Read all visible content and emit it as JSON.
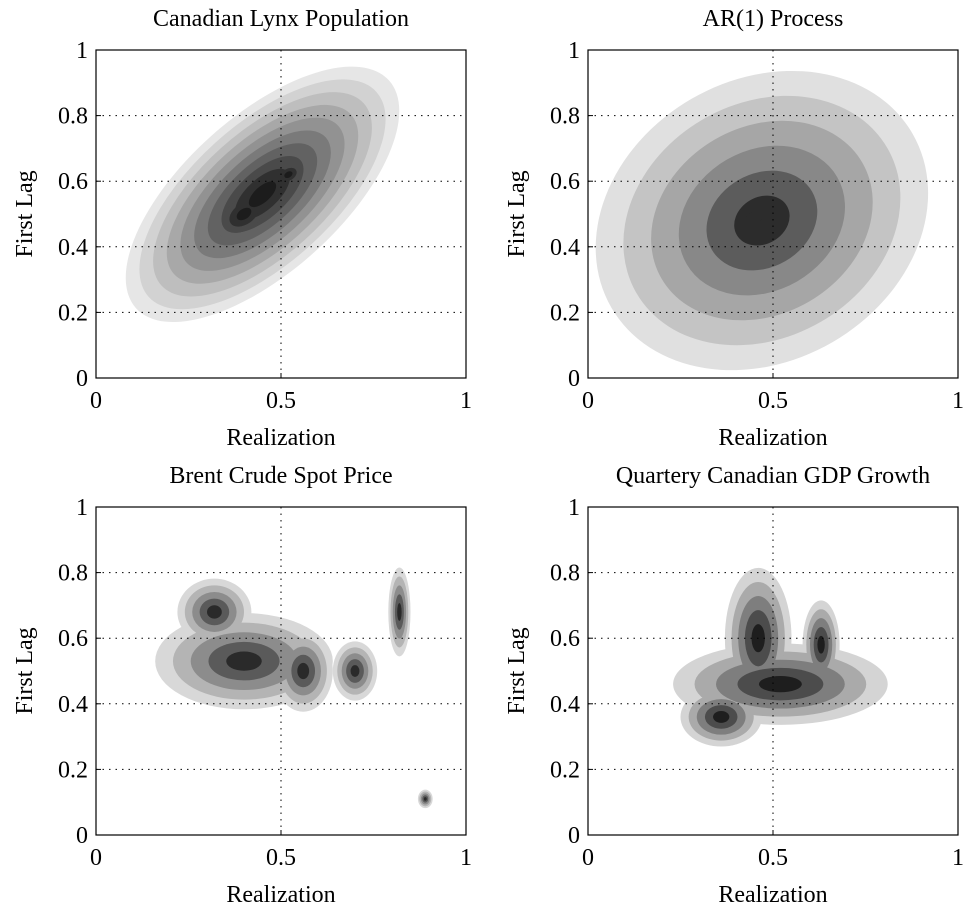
{
  "chart_data": [
    {
      "type": "contour",
      "title": "Canadian Lynx Population",
      "xlabel": "Realization",
      "ylabel": "First Lag",
      "xlim": [
        0,
        1
      ],
      "ylim": [
        0,
        1
      ],
      "xticks": [
        0,
        0.5,
        1
      ],
      "yticks": [
        0,
        0.2,
        0.4,
        0.6,
        0.8,
        1
      ],
      "grid": true,
      "levels": [
        "#e6e6e6",
        "#d2d2d2",
        "#bebebe",
        "#a8a8a8",
        "#929292",
        "#7a7a7a",
        "#626262",
        "#4a4a4a",
        "#303030",
        "#1c1c1c"
      ],
      "components": [
        {
          "x": 0.45,
          "y": 0.56,
          "rx": 0.46,
          "ry": 0.21,
          "angle": 42
        },
        {
          "x": 0.4,
          "y": 0.5,
          "rx": 0.22,
          "ry": 0.14,
          "angle": 35
        },
        {
          "x": 0.52,
          "y": 0.62,
          "rx": 0.12,
          "ry": 0.08,
          "angle": 30
        }
      ]
    },
    {
      "type": "contour",
      "title": "AR(1) Process",
      "xlabel": "Realization",
      "ylabel": "First Lag",
      "xlim": [
        0,
        1
      ],
      "ylim": [
        0,
        1
      ],
      "xticks": [
        0,
        0.5,
        1
      ],
      "yticks": [
        0,
        0.2,
        0.4,
        0.6,
        0.8,
        1
      ],
      "grid": true,
      "levels": [
        "#e0e0e0",
        "#c4c4c4",
        "#a6a6a6",
        "#888888",
        "#5c5c5c",
        "#2c2c2c"
      ],
      "components": [
        {
          "x": 0.47,
          "y": 0.48,
          "rx": 0.47,
          "ry": 0.38,
          "angle": 30
        },
        {
          "x": 0.45,
          "y": 0.49,
          "rx": 0.15,
          "ry": 0.09,
          "angle": 20
        }
      ]
    },
    {
      "type": "contour",
      "title": "Brent Crude Spot Price",
      "xlabel": "Realization",
      "ylabel": "First Lag",
      "xlim": [
        0,
        1
      ],
      "ylim": [
        0,
        1
      ],
      "xticks": [
        0,
        0.5,
        1
      ],
      "yticks": [
        0,
        0.2,
        0.4,
        0.6,
        0.8,
        1
      ],
      "grid": true,
      "levels": [
        "#d8d8d8",
        "#b4b4b4",
        "#8c8c8c",
        "#5a5a5a",
        "#2a2a2a"
      ],
      "components": [
        {
          "x": 0.4,
          "y": 0.53,
          "rx": 0.24,
          "ry": 0.13,
          "angle": 0
        },
        {
          "x": 0.56,
          "y": 0.5,
          "rx": 0.08,
          "ry": 0.11,
          "angle": 0
        },
        {
          "x": 0.32,
          "y": 0.68,
          "rx": 0.1,
          "ry": 0.09,
          "angle": 0
        },
        {
          "x": 0.82,
          "y": 0.68,
          "rx": 0.03,
          "ry": 0.12,
          "angle": 0
        },
        {
          "x": 0.7,
          "y": 0.5,
          "rx": 0.06,
          "ry": 0.08,
          "angle": 0
        },
        {
          "x": 0.89,
          "y": 0.11,
          "rx": 0.02,
          "ry": 0.025,
          "angle": 0
        }
      ]
    },
    {
      "type": "contour",
      "title": "Quartery Canadian GDP Growth",
      "xlabel": "Realization",
      "ylabel": "First Lag",
      "xlim": [
        0,
        1
      ],
      "ylim": [
        0,
        1
      ],
      "xticks": [
        0,
        0.5,
        1
      ],
      "yticks": [
        0,
        0.2,
        0.4,
        0.6,
        0.8,
        1
      ],
      "grid": true,
      "levels": [
        "#d4d4d4",
        "#aaaaaa",
        "#7e7e7e",
        "#4c4c4c",
        "#1e1e1e"
      ],
      "components": [
        {
          "x": 0.52,
          "y": 0.46,
          "rx": 0.29,
          "ry": 0.11,
          "angle": 0
        },
        {
          "x": 0.46,
          "y": 0.6,
          "rx": 0.09,
          "ry": 0.19,
          "angle": 0
        },
        {
          "x": 0.36,
          "y": 0.36,
          "rx": 0.11,
          "ry": 0.08,
          "angle": 0
        },
        {
          "x": 0.63,
          "y": 0.58,
          "rx": 0.05,
          "ry": 0.12,
          "angle": 0
        }
      ]
    }
  ]
}
